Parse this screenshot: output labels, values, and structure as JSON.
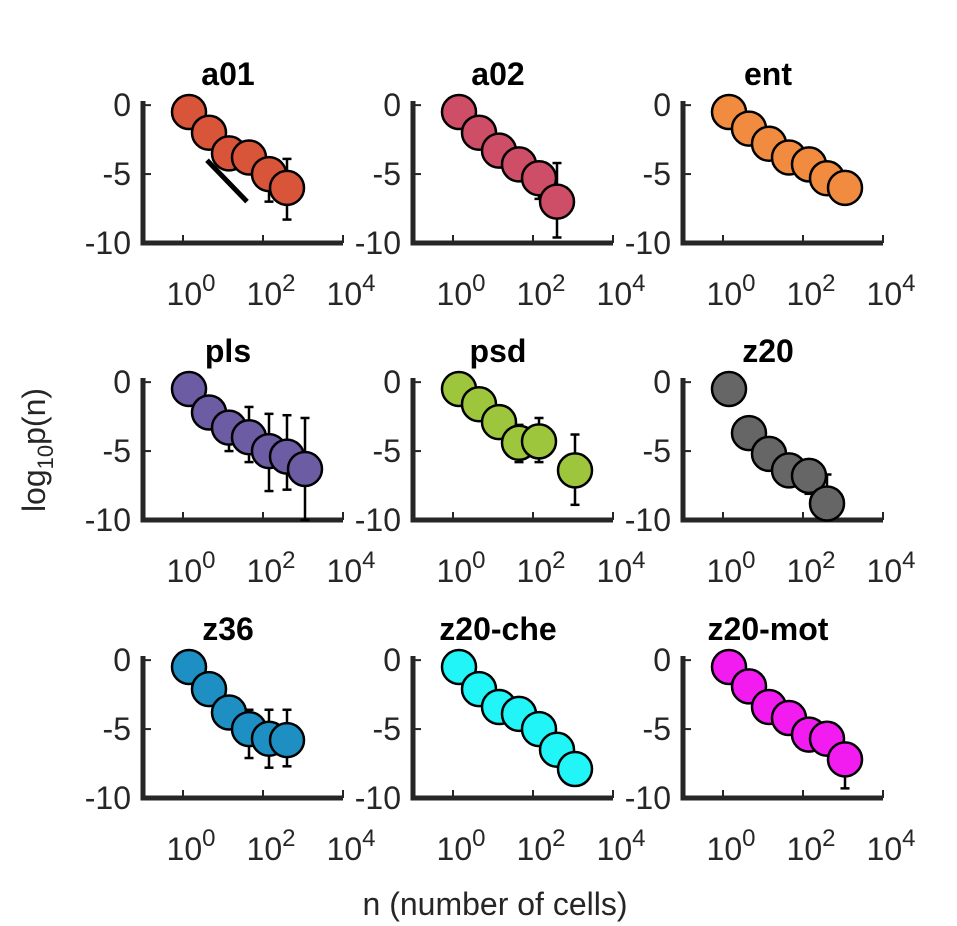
{
  "figure": {
    "xlabel": "n (number of cells)",
    "ylabel": "log",
    "ylabel_sub": "10",
    "ylabel_tail": "p(n)"
  },
  "chart_data": [
    {
      "type": "scatter",
      "title": "a01",
      "color": "#D9553A",
      "xscale": "log10",
      "xlim_log10": [
        -1,
        4
      ],
      "ylim": [
        -10,
        0.3
      ],
      "xticks": [
        {
          "b": "10",
          "e": "0"
        },
        {
          "b": "10",
          "e": "2"
        },
        {
          "b": "10",
          "e": "4"
        }
      ],
      "yticks": [
        "0",
        "-5",
        "-10"
      ],
      "points": [
        {
          "log10x": 0.15,
          "y": -0.5,
          "lo": -0.5,
          "hi": -0.5
        },
        {
          "log10x": 0.65,
          "y": -2.0,
          "lo": -2.5,
          "hi": -1.5
        },
        {
          "log10x": 1.15,
          "y": -3.5,
          "lo": -4.0,
          "hi": -3.2
        },
        {
          "log10x": 1.65,
          "y": -3.8,
          "lo": -4.4,
          "hi": -3.3
        },
        {
          "log10x": 2.15,
          "y": -5.0,
          "lo": -7.0,
          "hi": -4.0
        },
        {
          "log10x": 2.6,
          "y": -6.0,
          "lo": -8.3,
          "hi": -3.9
        }
      ],
      "fit_line": [
        {
          "log10x": 0.6,
          "y": -4.0
        },
        {
          "log10x": 1.6,
          "y": -7.0
        }
      ]
    },
    {
      "type": "scatter",
      "title": "a02",
      "color": "#CF4E67",
      "xscale": "log10",
      "xlim_log10": [
        -1,
        4
      ],
      "ylim": [
        -10,
        0.3
      ],
      "xticks": [
        {
          "b": "10",
          "e": "0"
        },
        {
          "b": "10",
          "e": "2"
        },
        {
          "b": "10",
          "e": "4"
        }
      ],
      "yticks": [
        "0",
        "-5",
        "-10"
      ],
      "points": [
        {
          "log10x": 0.15,
          "y": -0.5,
          "lo": -0.5,
          "hi": -0.5
        },
        {
          "log10x": 0.65,
          "y": -2.0,
          "lo": -2.4,
          "hi": -1.6
        },
        {
          "log10x": 1.15,
          "y": -3.3,
          "lo": -3.9,
          "hi": -2.8
        },
        {
          "log10x": 1.65,
          "y": -4.3,
          "lo": -5.3,
          "hi": -3.4
        },
        {
          "log10x": 2.15,
          "y": -5.3,
          "lo": -6.8,
          "hi": -4.1
        },
        {
          "log10x": 2.6,
          "y": -7.0,
          "lo": -9.6,
          "hi": -4.2
        }
      ]
    },
    {
      "type": "scatter",
      "title": "ent",
      "color": "#F08B3F",
      "xscale": "log10",
      "xlim_log10": [
        -1,
        4
      ],
      "ylim": [
        -10,
        0.3
      ],
      "xticks": [
        {
          "b": "10",
          "e": "0"
        },
        {
          "b": "10",
          "e": "2"
        },
        {
          "b": "10",
          "e": "4"
        }
      ],
      "yticks": [
        "0",
        "-5",
        "-10"
      ],
      "points": [
        {
          "log10x": 0.15,
          "y": -0.5,
          "lo": -0.5,
          "hi": -0.5
        },
        {
          "log10x": 0.65,
          "y": -1.7,
          "lo": -2.0,
          "hi": -1.4
        },
        {
          "log10x": 1.15,
          "y": -2.8,
          "lo": -3.2,
          "hi": -2.4
        },
        {
          "log10x": 1.65,
          "y": -3.8,
          "lo": -4.3,
          "hi": -3.4
        },
        {
          "log10x": 2.15,
          "y": -4.3,
          "lo": -4.8,
          "hi": -3.8
        },
        {
          "log10x": 2.6,
          "y": -5.3,
          "lo": -5.8,
          "hi": -4.8
        },
        {
          "log10x": 3.05,
          "y": -6.0,
          "lo": -6.2,
          "hi": -5.8
        }
      ]
    },
    {
      "type": "scatter",
      "title": "pls",
      "color": "#6B5CA3",
      "xscale": "log10",
      "xlim_log10": [
        -1,
        4
      ],
      "ylim": [
        -10,
        0.3
      ],
      "xticks": [
        {
          "b": "10",
          "e": "0"
        },
        {
          "b": "10",
          "e": "2"
        },
        {
          "b": "10",
          "e": "4"
        }
      ],
      "yticks": [
        "0",
        "-5",
        "-10"
      ],
      "points": [
        {
          "log10x": 0.15,
          "y": -0.5,
          "lo": -0.5,
          "hi": -0.5
        },
        {
          "log10x": 0.65,
          "y": -2.2,
          "lo": -2.8,
          "hi": -1.6
        },
        {
          "log10x": 1.15,
          "y": -3.3,
          "lo": -5.0,
          "hi": -2.2
        },
        {
          "log10x": 1.65,
          "y": -4.0,
          "lo": -5.8,
          "hi": -1.8
        },
        {
          "log10x": 2.15,
          "y": -5.0,
          "lo": -7.9,
          "hi": -2.3
        },
        {
          "log10x": 2.6,
          "y": -5.4,
          "lo": -7.8,
          "hi": -2.4
        },
        {
          "log10x": 3.05,
          "y": -6.3,
          "lo": -10.0,
          "hi": -2.6
        }
      ]
    },
    {
      "type": "scatter",
      "title": "psd",
      "color": "#9DC63C",
      "xscale": "log10",
      "xlim_log10": [
        -1,
        4
      ],
      "ylim": [
        -10,
        0.3
      ],
      "xticks": [
        {
          "b": "10",
          "e": "0"
        },
        {
          "b": "10",
          "e": "2"
        },
        {
          "b": "10",
          "e": "4"
        }
      ],
      "yticks": [
        "0",
        "-5",
        "-10"
      ],
      "points": [
        {
          "log10x": 0.15,
          "y": -0.5,
          "lo": -0.5,
          "hi": -0.5
        },
        {
          "log10x": 0.65,
          "y": -1.6,
          "lo": -2.0,
          "hi": -1.2
        },
        {
          "log10x": 1.15,
          "y": -2.9,
          "lo": -3.5,
          "hi": -2.3
        },
        {
          "log10x": 1.65,
          "y": -4.4,
          "lo": -5.8,
          "hi": -3.1
        },
        {
          "log10x": 2.15,
          "y": -4.3,
          "lo": -5.8,
          "hi": -2.6
        },
        {
          "log10x": 3.05,
          "y": -6.4,
          "lo": -8.9,
          "hi": -3.8
        }
      ]
    },
    {
      "type": "scatter",
      "title": "z20",
      "color": "#666666",
      "xscale": "log10",
      "xlim_log10": [
        -1,
        4
      ],
      "ylim": [
        -10,
        0.3
      ],
      "xticks": [
        {
          "b": "10",
          "e": "0"
        },
        {
          "b": "10",
          "e": "2"
        },
        {
          "b": "10",
          "e": "4"
        }
      ],
      "yticks": [
        "0",
        "-5",
        "-10"
      ],
      "points": [
        {
          "log10x": 0.15,
          "y": -0.5,
          "lo": -1.0,
          "hi": -0.5
        },
        {
          "log10x": 0.65,
          "y": -3.7,
          "lo": -4.0,
          "hi": -3.3
        },
        {
          "log10x": 1.15,
          "y": -5.2,
          "lo": -5.8,
          "hi": -4.7
        },
        {
          "log10x": 1.65,
          "y": -6.4,
          "lo": -7.0,
          "hi": -5.8
        },
        {
          "log10x": 2.15,
          "y": -6.8,
          "lo": -8.1,
          "hi": -5.8
        },
        {
          "log10x": 2.6,
          "y": -8.8,
          "lo": -9.5,
          "hi": -6.7
        }
      ]
    },
    {
      "type": "scatter",
      "title": "z36",
      "color": "#1E8FC2",
      "xscale": "log10",
      "xlim_log10": [
        -1,
        4
      ],
      "ylim": [
        -10,
        0.3
      ],
      "xticks": [
        {
          "b": "10",
          "e": "0"
        },
        {
          "b": "10",
          "e": "2"
        },
        {
          "b": "10",
          "e": "4"
        }
      ],
      "yticks": [
        "0",
        "-5",
        "-10"
      ],
      "points": [
        {
          "log10x": 0.15,
          "y": -0.5,
          "lo": -0.5,
          "hi": -0.5
        },
        {
          "log10x": 0.65,
          "y": -2.1,
          "lo": -2.5,
          "hi": -1.7
        },
        {
          "log10x": 1.15,
          "y": -3.8,
          "lo": -4.5,
          "hi": -3.1
        },
        {
          "log10x": 1.65,
          "y": -5.0,
          "lo": -7.1,
          "hi": -3.6
        },
        {
          "log10x": 2.15,
          "y": -5.7,
          "lo": -7.8,
          "hi": -3.6
        },
        {
          "log10x": 2.6,
          "y": -5.8,
          "lo": -7.7,
          "hi": -3.6
        }
      ]
    },
    {
      "type": "scatter",
      "title": "z20-che",
      "color": "#22F5F7",
      "xscale": "log10",
      "xlim_log10": [
        -1,
        4
      ],
      "ylim": [
        -10,
        0.3
      ],
      "xticks": [
        {
          "b": "10",
          "e": "0"
        },
        {
          "b": "10",
          "e": "2"
        },
        {
          "b": "10",
          "e": "4"
        }
      ],
      "yticks": [
        "0",
        "-5",
        "-10"
      ],
      "points": [
        {
          "log10x": 0.15,
          "y": -0.5,
          "lo": -1.2,
          "hi": -0.3
        },
        {
          "log10x": 0.65,
          "y": -2.1,
          "lo": -2.5,
          "hi": -1.7
        },
        {
          "log10x": 1.15,
          "y": -3.4,
          "lo": -3.8,
          "hi": -3.0
        },
        {
          "log10x": 1.65,
          "y": -3.9,
          "lo": -4.4,
          "hi": -3.5
        },
        {
          "log10x": 2.15,
          "y": -5.0,
          "lo": -5.5,
          "hi": -4.5
        },
        {
          "log10x": 2.6,
          "y": -6.5,
          "lo": -7.5,
          "hi": -5.7
        },
        {
          "log10x": 3.05,
          "y": -7.9,
          "lo": -8.8,
          "hi": -7.2
        }
      ]
    },
    {
      "type": "scatter",
      "title": "z20-mot",
      "color": "#F21CF0",
      "xscale": "log10",
      "xlim_log10": [
        -1,
        4
      ],
      "ylim": [
        -10,
        0.3
      ],
      "xticks": [
        {
          "b": "10",
          "e": "0"
        },
        {
          "b": "10",
          "e": "2"
        },
        {
          "b": "10",
          "e": "4"
        }
      ],
      "yticks": [
        "0",
        "-5",
        "-10"
      ],
      "points": [
        {
          "log10x": 0.15,
          "y": -0.5,
          "lo": -0.5,
          "hi": -0.5
        },
        {
          "log10x": 0.65,
          "y": -1.9,
          "lo": -2.3,
          "hi": -1.5
        },
        {
          "log10x": 1.15,
          "y": -3.4,
          "lo": -3.8,
          "hi": -3.0
        },
        {
          "log10x": 1.65,
          "y": -4.2,
          "lo": -4.8,
          "hi": -3.6
        },
        {
          "log10x": 2.15,
          "y": -5.4,
          "lo": -6.4,
          "hi": -4.5
        },
        {
          "log10x": 2.6,
          "y": -5.7,
          "lo": -6.6,
          "hi": -4.7
        },
        {
          "log10x": 3.05,
          "y": -7.2,
          "lo": -9.3,
          "hi": -6.2
        }
      ]
    }
  ]
}
